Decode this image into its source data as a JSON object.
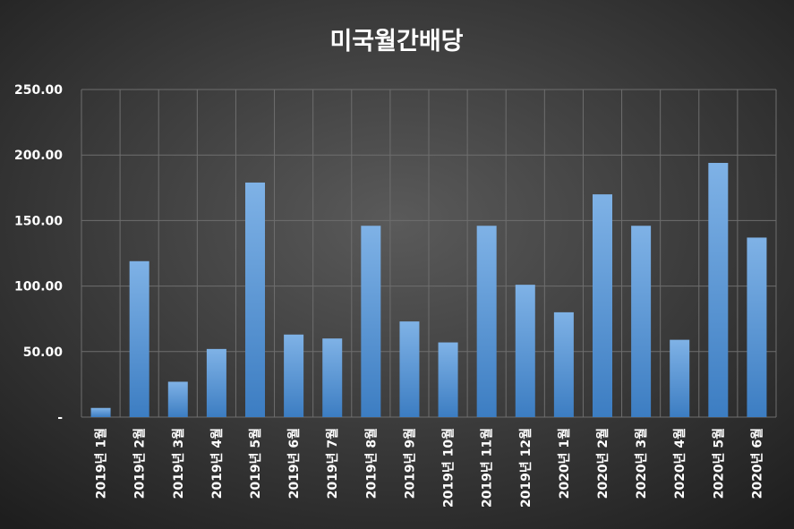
{
  "chart_data": {
    "type": "bar",
    "title": "미국월간배당",
    "xlabel": "",
    "ylabel": "",
    "ylim": [
      0,
      250
    ],
    "yticks": [
      {
        "value": 0,
        "label": "-"
      },
      {
        "value": 50,
        "label": "50.00"
      },
      {
        "value": 100,
        "label": "100.00"
      },
      {
        "value": 150,
        "label": "150.00"
      },
      {
        "value": 200,
        "label": "200.00"
      },
      {
        "value": 250,
        "label": "250.00"
      }
    ],
    "grid": true,
    "legend": "none",
    "categories": [
      "2019년 1월",
      "2019년 2월",
      "2019년 3월",
      "2019년 4월",
      "2019년 5월",
      "2019년 6월",
      "2019년 7월",
      "2019년 8월",
      "2019년 9월",
      "2019년 10월",
      "2019년 11월",
      "2019년 12월",
      "2020년 1월",
      "2020년 2월",
      "2020년 3월",
      "2020년 4월",
      "2020년 5월",
      "2020년 6월"
    ],
    "values": [
      7,
      119,
      27,
      52,
      179,
      63,
      60,
      146,
      73,
      57,
      146,
      101,
      80,
      170,
      146,
      59,
      194,
      137
    ],
    "colors": {
      "bar_top": "#7fb2e6",
      "bar_bottom": "#3c7dc2",
      "background_center": "#5a5a5a",
      "background_edge": "#1e1e1e",
      "grid": "#6e6e6e",
      "text": "#ffffff"
    }
  }
}
